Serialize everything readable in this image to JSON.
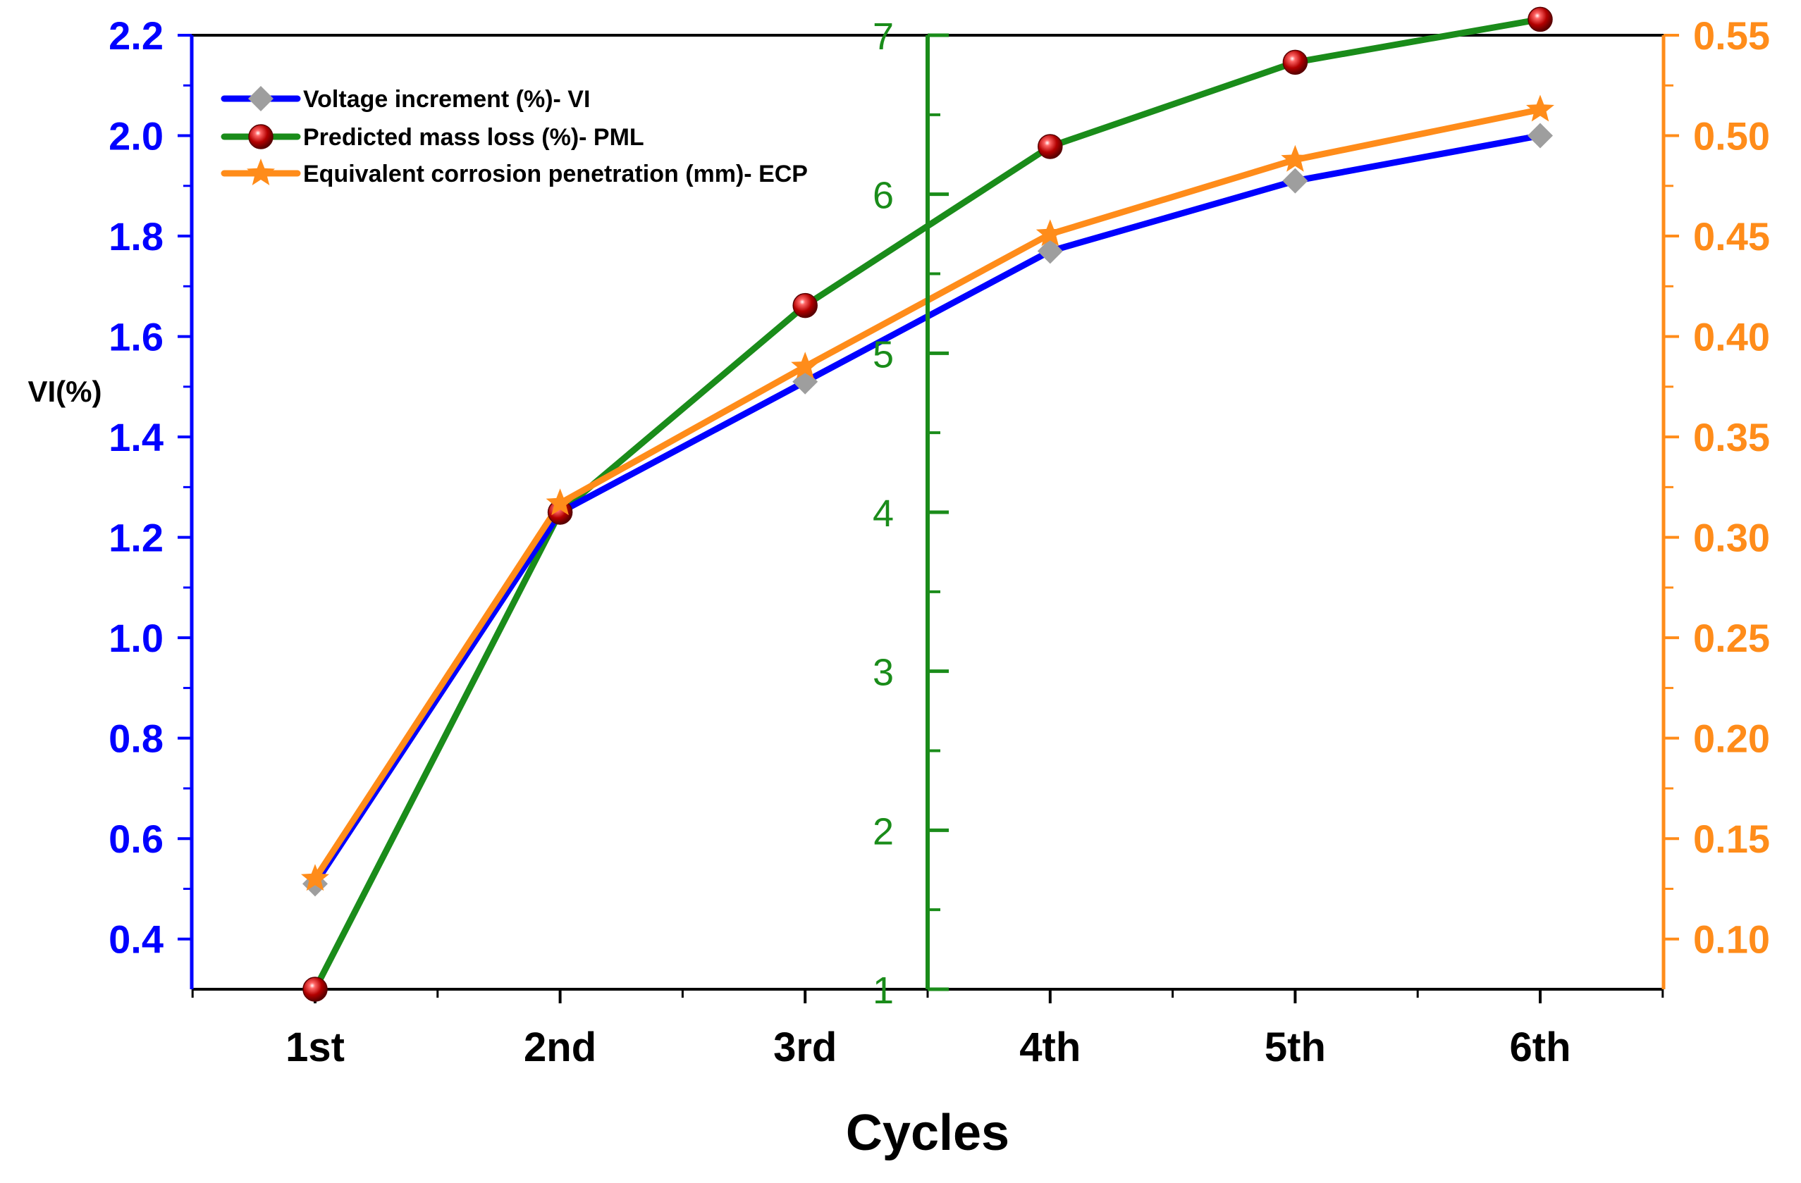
{
  "chart_data": {
    "type": "line",
    "title": "",
    "xlabel": "Cycles",
    "ylabel_left": "VI(%)",
    "categories": [
      "1st",
      "2nd",
      "3rd",
      "4th",
      "5th",
      "6th"
    ],
    "axes": {
      "left": {
        "range": [
          0.3,
          2.2
        ],
        "ticks": [
          "0.4",
          "0.6",
          "0.8",
          "1.0",
          "1.2",
          "1.4",
          "1.6",
          "1.8",
          "2.0",
          "2.2"
        ],
        "color": "#0000ff"
      },
      "middle": {
        "range": [
          1,
          7
        ],
        "ticks": [
          "1",
          "2",
          "3",
          "4",
          "5",
          "6",
          "7"
        ],
        "color": "#1a8c1a"
      },
      "right": {
        "range": [
          0.075,
          0.55
        ],
        "ticks": [
          "0.10",
          "0.15",
          "0.20",
          "0.25",
          "0.30",
          "0.35",
          "0.40",
          "0.45",
          "0.50",
          "0.55"
        ],
        "color": "#ff8c1a"
      }
    },
    "series": [
      {
        "name": "Voltage increment (%)- VI",
        "axis": "left",
        "values": [
          0.51,
          1.25,
          1.51,
          1.77,
          1.91,
          2.0
        ],
        "line_color": "#0000ff",
        "marker": "diamond",
        "marker_color": "#9e9e9e"
      },
      {
        "name": "Predicted mass loss (%)- PML",
        "axis": "middle",
        "values": [
          1.0,
          4.0,
          5.3,
          6.3,
          6.83,
          7.1
        ],
        "line_color": "#1a8c1a",
        "marker": "circle",
        "marker_color": "#b30000"
      },
      {
        "name": "Equivalent corrosion penetration (mm)- ECP",
        "axis": "right",
        "values": [
          0.13,
          0.317,
          0.385,
          0.451,
          0.488,
          0.513
        ],
        "line_color": "#ff8c1a",
        "marker": "star",
        "marker_color": "#ff8c1a"
      }
    ],
    "legend_position": "top-left",
    "grid": false
  }
}
